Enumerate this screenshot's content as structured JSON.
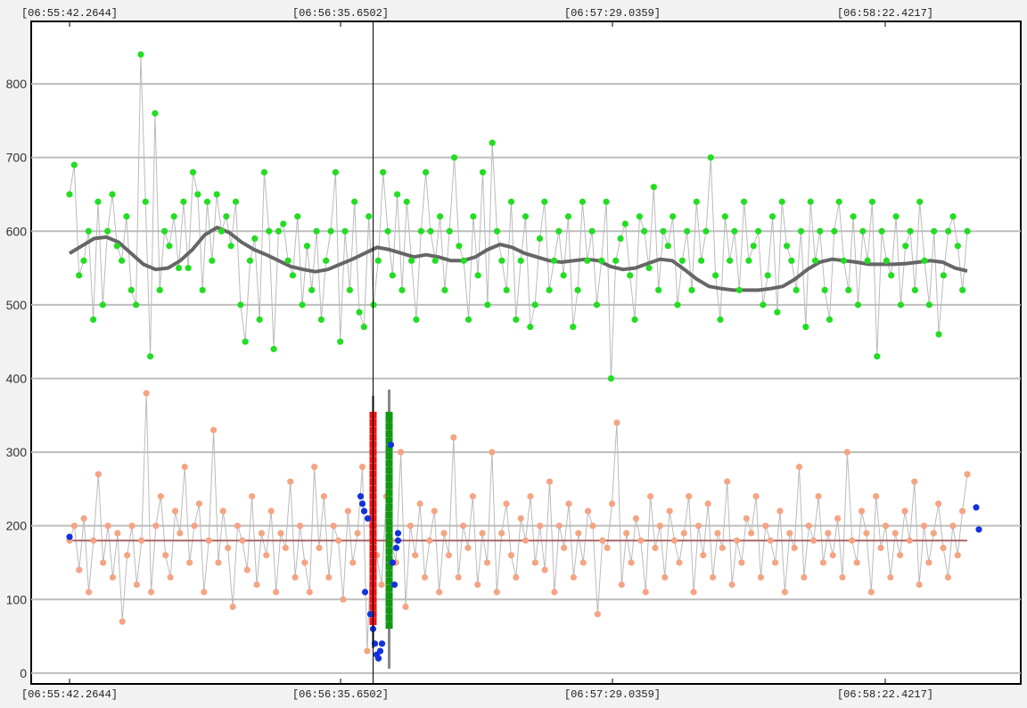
{
  "chart_data": {
    "type": "scatter",
    "title": "",
    "xlabel": "",
    "ylabel": "",
    "x_tick_labels": [
      "[06:55:42.2644]",
      "[06:56:35.6502]",
      "[06:57:29.0359]",
      "[06:58:22.4217]"
    ],
    "y_ticks": [
      0,
      100,
      200,
      300,
      400,
      500,
      600,
      700,
      800
    ],
    "ylim": [
      -5,
      880
    ],
    "grid": true,
    "legend": "none",
    "cursor_index": 64,
    "series": [
      {
        "role": "upper",
        "color": "#22dd22",
        "line_color": "#bbbbbb",
        "values": [
          650,
          690,
          540,
          560,
          600,
          480,
          640,
          500,
          600,
          650,
          580,
          560,
          620,
          520,
          500,
          840,
          640,
          430,
          760,
          520,
          600,
          580,
          620,
          550,
          640,
          550,
          680,
          650,
          520,
          640,
          560,
          650,
          600,
          620,
          580,
          640,
          500,
          450,
          560,
          590,
          480,
          680,
          600,
          440,
          600,
          610,
          560,
          540,
          620,
          500,
          580,
          520,
          600,
          480,
          560,
          600,
          680,
          450,
          600,
          520,
          640,
          490,
          470,
          620,
          500,
          560,
          680,
          600,
          540,
          650,
          520,
          640,
          560,
          480,
          600,
          680,
          600,
          560,
          620,
          520,
          600,
          700,
          580,
          560,
          480,
          620,
          540,
          680,
          500,
          720,
          600,
          560,
          520,
          640,
          480,
          560,
          620,
          470,
          500,
          590,
          640,
          520,
          560,
          600,
          540,
          620,
          470,
          520,
          640,
          560,
          600,
          500,
          560,
          640,
          400,
          560,
          590,
          610,
          540,
          480,
          620,
          600,
          550,
          660,
          520,
          600,
          580,
          620,
          500,
          560,
          600,
          520,
          640,
          560,
          600,
          700,
          540,
          480,
          620,
          560,
          600,
          520,
          640,
          560,
          580,
          600,
          500,
          540,
          620,
          490,
          640,
          580,
          560,
          520,
          600,
          470,
          640,
          560,
          600,
          520,
          480,
          600,
          640,
          560,
          520,
          620,
          500,
          600,
          560,
          640,
          430,
          600,
          560,
          540,
          620,
          500,
          580,
          600,
          520,
          640,
          560,
          500,
          600,
          460,
          540,
          600,
          620,
          580,
          520,
          600
        ],
        "trend": [
          570,
          580,
          590,
          592,
          585,
          570,
          555,
          548,
          550,
          560,
          575,
          595,
          605,
          598,
          585,
          575,
          568,
          560,
          552,
          548,
          545,
          548,
          555,
          562,
          570,
          578,
          575,
          570,
          565,
          568,
          565,
          560,
          560,
          565,
          575,
          582,
          578,
          570,
          565,
          560,
          558,
          560,
          562,
          560,
          552,
          548,
          550,
          556,
          562,
          560,
          548,
          535,
          525,
          522,
          520,
          520,
          520,
          522,
          525,
          535,
          548,
          558,
          562,
          560,
          558,
          555,
          555,
          555,
          556,
          558,
          560,
          558,
          550,
          546
        ]
      },
      {
        "role": "lower",
        "color": "#f5a484",
        "line_color": "#bbbbbb",
        "values": [
          180,
          200,
          140,
          210,
          110,
          180,
          270,
          150,
          200,
          130,
          190,
          70,
          160,
          200,
          120,
          180,
          380,
          110,
          200,
          240,
          160,
          130,
          220,
          190,
          280,
          150,
          200,
          230,
          110,
          180,
          330,
          150,
          220,
          170,
          90,
          200,
          180,
          140,
          240,
          120,
          190,
          160,
          220,
          110,
          190,
          170,
          260,
          130,
          200,
          150,
          110,
          280,
          170,
          240,
          130,
          200,
          180,
          100,
          220,
          150,
          190,
          280,
          30,
          200,
          160,
          120,
          240,
          180,
          150,
          300,
          90,
          200,
          160,
          230,
          130,
          180,
          220,
          110,
          190,
          160,
          320,
          130,
          200,
          170,
          240,
          120,
          190,
          150,
          300,
          110,
          190,
          230,
          160,
          130,
          210,
          180,
          240,
          150,
          200,
          140,
          260,
          110,
          200,
          170,
          230,
          130,
          190,
          150,
          220,
          200,
          80,
          180,
          170,
          230,
          340,
          120,
          190,
          150,
          210,
          180,
          110,
          240,
          170,
          200,
          130,
          220,
          180,
          150,
          190,
          240,
          110,
          200,
          160,
          230,
          130,
          190,
          170,
          260,
          120,
          180,
          150,
          210,
          190,
          240,
          130,
          200,
          180,
          150,
          220,
          110,
          190,
          170,
          280,
          130,
          200,
          180,
          240,
          150,
          190,
          160,
          210,
          130,
          300,
          180,
          150,
          220,
          190,
          110,
          240,
          170,
          200,
          130,
          190,
          160,
          220,
          180,
          260,
          120,
          200,
          150,
          190,
          230,
          170,
          130,
          200,
          160,
          220,
          270
        ]
      }
    ],
    "lower_mean": 180,
    "mean_color": "#aa6666",
    "trend_color": "#666666",
    "selection": {
      "red_color": "#ee1111",
      "green_color": "#119911",
      "blue_color": "#1133dd",
      "red_values": [
        70,
        80,
        90,
        100,
        110,
        120,
        130,
        140,
        150,
        160,
        170,
        180,
        190,
        200,
        210,
        220,
        230,
        240,
        250,
        260,
        270,
        280,
        290,
        300,
        310,
        320,
        330,
        340,
        350
      ],
      "green_values": [
        65,
        75,
        85,
        95,
        105,
        115,
        125,
        135,
        145,
        155,
        165,
        175,
        185,
        195,
        205,
        215,
        225,
        235,
        245,
        255,
        265,
        275,
        285,
        295,
        305,
        315,
        325,
        335,
        345,
        350
      ],
      "blue_values": [
        240,
        230,
        220,
        210,
        110,
        80,
        60,
        40,
        25,
        20,
        30,
        40,
        150,
        170,
        180,
        120,
        310,
        190,
        225,
        195
      ]
    }
  }
}
